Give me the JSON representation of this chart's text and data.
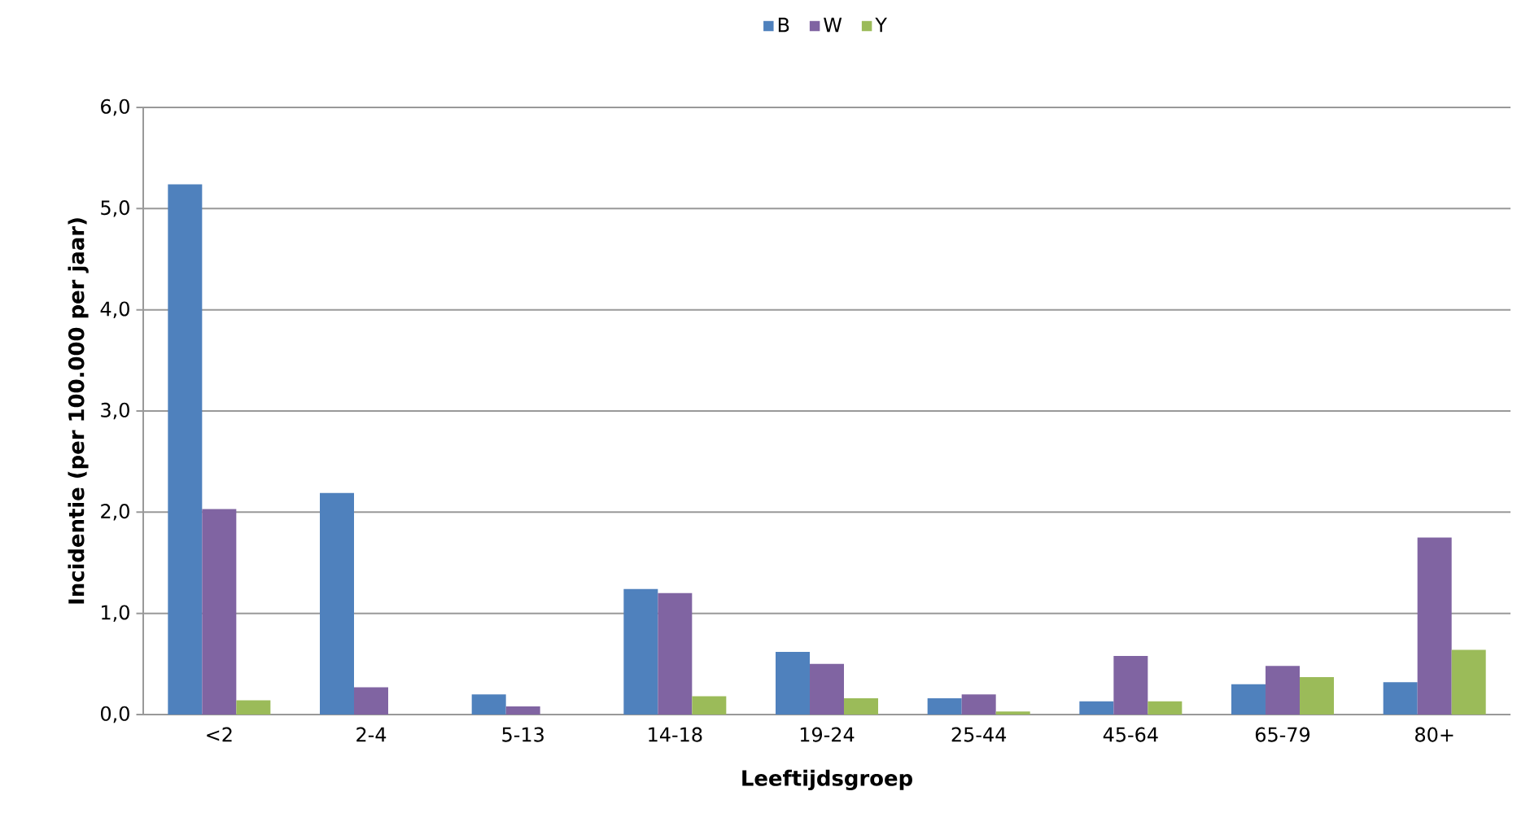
{
  "chart_data": {
    "type": "bar",
    "xlabel": "Leeftijdsgroep",
    "ylabel": "Incidentie (per 100.000 per jaar)",
    "categories": [
      "<2",
      "2-4",
      "5-13",
      "14-18",
      "19-24",
      "25-44",
      "45-64",
      "65-79",
      "80+"
    ],
    "series": [
      {
        "name": "B",
        "color": "#4f81bd",
        "values": [
          5.24,
          2.19,
          0.2,
          1.24,
          0.62,
          0.16,
          0.13,
          0.3,
          0.32
        ]
      },
      {
        "name": "W",
        "color": "#8064a2",
        "values": [
          2.03,
          0.27,
          0.08,
          1.2,
          0.5,
          0.2,
          0.58,
          0.48,
          1.75
        ]
      },
      {
        "name": "Y",
        "color": "#9bbb59",
        "values": [
          0.14,
          0,
          0,
          0.18,
          0.16,
          0.03,
          0.13,
          0.37,
          0.64
        ]
      }
    ],
    "ylim": [
      0,
      6
    ],
    "yticks": [
      {
        "value": 0,
        "label": "0,0"
      },
      {
        "value": 1,
        "label": "1,0"
      },
      {
        "value": 2,
        "label": "2,0"
      },
      {
        "value": 3,
        "label": "3,0"
      },
      {
        "value": 4,
        "label": "4,0"
      },
      {
        "value": 5,
        "label": "5,0"
      },
      {
        "value": 6,
        "label": "6,0"
      }
    ],
    "grid": "y",
    "legend": "top"
  }
}
